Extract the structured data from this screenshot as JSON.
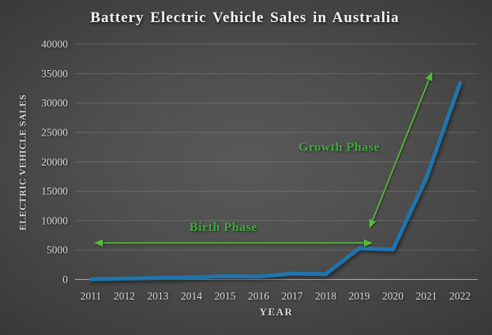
{
  "title": "Battery Electric Vehicle Sales in Australia",
  "colors": {
    "line": "#1f74ad",
    "annotation_text": "#3ea93e",
    "annotation_arrow": "#56bb3c",
    "gridline": "rgba(255,255,255,0.15)",
    "axis_line": "rgba(255,255,255,0.55)",
    "tick_label": "#d8d8d8",
    "title_text": "#f4f4f4",
    "background_center": "#595959",
    "background_edge": "#262626"
  },
  "chart_data": {
    "type": "line",
    "title": "Battery Electric Vehicle Sales in Australia",
    "xlabel": "YEAR",
    "ylabel": "ELECTRIC VEHICLE SALES",
    "categories": [
      "2011",
      "2012",
      "2013",
      "2014",
      "2015",
      "2016",
      "2017",
      "2018",
      "2019",
      "2020",
      "2021",
      "2022"
    ],
    "series": [
      {
        "name": "Battery electric vehicle sales",
        "values": [
          50,
          150,
          250,
          350,
          550,
          480,
          1000,
          900,
          5300,
          5100,
          17300,
          33400
        ]
      }
    ],
    "ylim": [
      0,
      40000
    ],
    "y_ticks": [
      0,
      5000,
      10000,
      15000,
      20000,
      25000,
      30000,
      35000,
      40000
    ],
    "grid": true,
    "legend": false,
    "annotations": [
      {
        "id": "birth-phase",
        "label": "Birth Phase",
        "arrow": "double",
        "from": {
          "year": 2011.1,
          "value": 6200
        },
        "to": {
          "year": 2019.4,
          "value": 6200
        },
        "label_at": {
          "year": 2014.95,
          "value": 8900
        }
      },
      {
        "id": "growth-phase",
        "label": "Growth Phase",
        "arrow": "double",
        "from": {
          "year": 2019.3,
          "value": 8700
        },
        "to": {
          "year": 2021.17,
          "value": 35300
        },
        "label_at": {
          "year": 2018.4,
          "value": 22500
        }
      }
    ]
  }
}
